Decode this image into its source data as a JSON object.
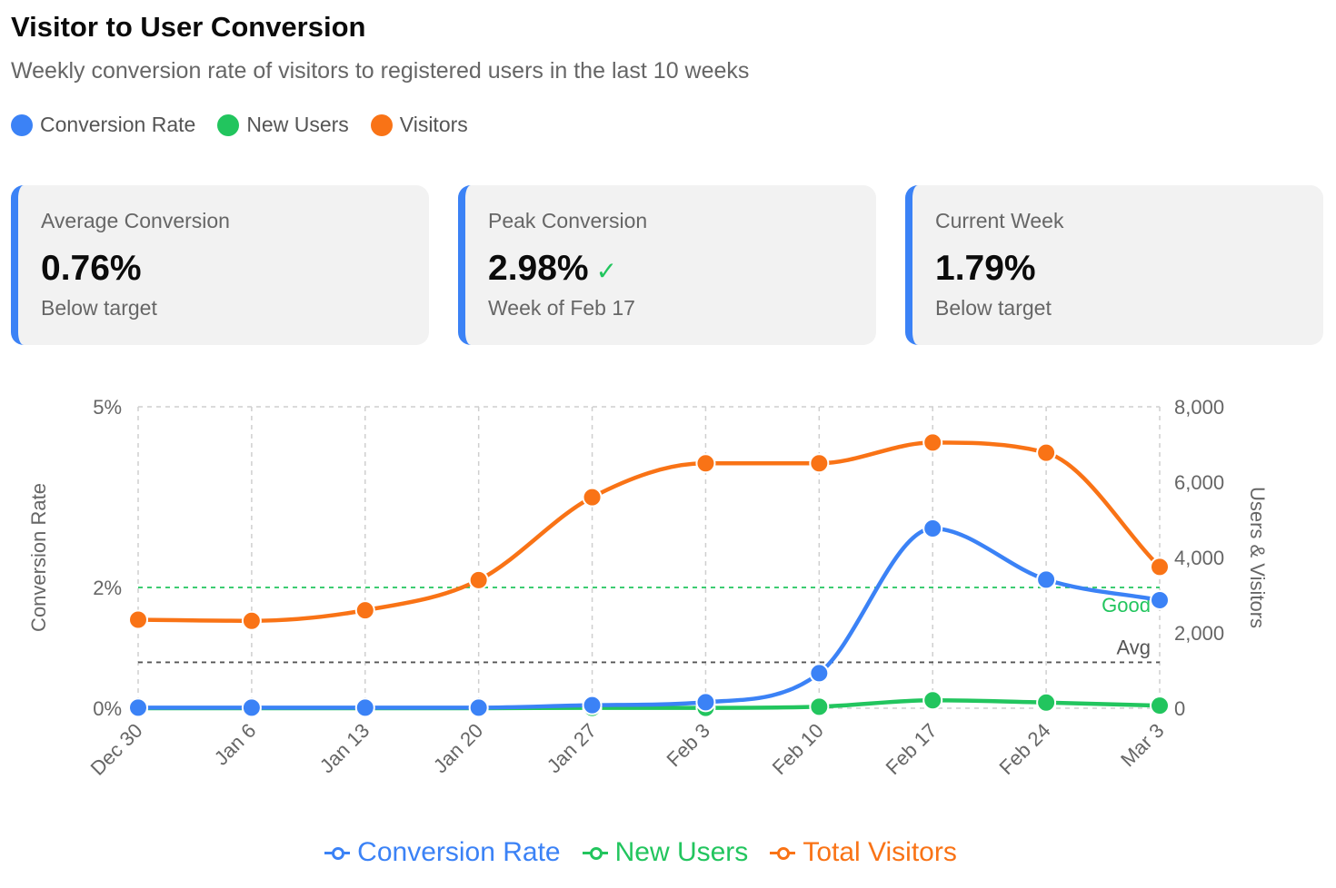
{
  "header": {
    "title": "Visitor to User Conversion",
    "subtitle": "Weekly conversion rate of visitors to registered users in the last 10 weeks"
  },
  "top_legend": [
    {
      "label": "Conversion Rate",
      "color": "#3b82f6"
    },
    {
      "label": "New Users",
      "color": "#22c55e"
    },
    {
      "label": "Visitors",
      "color": "#f97316"
    }
  ],
  "cards": [
    {
      "label": "Average Conversion",
      "value": "0.76%",
      "note": "Below target",
      "check": ""
    },
    {
      "label": "Peak Conversion",
      "value": "2.98%",
      "note": "Week of Feb 17",
      "check": "✓"
    },
    {
      "label": "Current Week",
      "value": "1.79%",
      "note": "Below target",
      "check": ""
    }
  ],
  "chart_data": {
    "type": "line",
    "categories": [
      "Dec 30",
      "Jan 6",
      "Jan 13",
      "Jan 20",
      "Jan 27",
      "Feb 3",
      "Feb 10",
      "Feb 17",
      "Feb 24",
      "Mar 3"
    ],
    "y_left": {
      "label": "Conversion Rate",
      "ticks": [
        0,
        2,
        5
      ],
      "tick_labels": [
        "0%",
        "2%",
        "5%"
      ],
      "range": [
        0,
        5
      ]
    },
    "y_right": {
      "label": "Users & Visitors",
      "ticks": [
        0,
        2000,
        4000,
        6000,
        8000
      ],
      "tick_labels": [
        "0",
        "2,000",
        "4,000",
        "6,000",
        "8,000"
      ],
      "range": [
        0,
        8000
      ]
    },
    "series": [
      {
        "name": "Conversion Rate",
        "axis": "left",
        "color": "#3b82f6",
        "values": [
          0.01,
          0.01,
          0.01,
          0.01,
          0.05,
          0.1,
          0.58,
          2.98,
          2.13,
          1.79
        ]
      },
      {
        "name": "New Users",
        "axis": "right",
        "color": "#22c55e",
        "values": [
          0,
          0,
          0,
          0,
          10,
          10,
          40,
          210,
          150,
          70
        ]
      },
      {
        "name": "Total Visitors",
        "axis": "right",
        "color": "#f97316",
        "values": [
          2350,
          2320,
          2600,
          3400,
          5600,
          6500,
          6500,
          7050,
          6780,
          3750
        ]
      }
    ],
    "reference_lines": [
      {
        "label": "Good",
        "value": 2,
        "axis": "left",
        "color": "#22c55e"
      },
      {
        "label": "Avg",
        "value": 0.76,
        "axis": "left",
        "color": "#555555"
      }
    ],
    "grid": true
  },
  "bottom_legend": [
    {
      "label": "Conversion Rate",
      "color": "#3b82f6"
    },
    {
      "label": "New Users",
      "color": "#22c55e"
    },
    {
      "label": "Total Visitors",
      "color": "#f97316"
    }
  ]
}
